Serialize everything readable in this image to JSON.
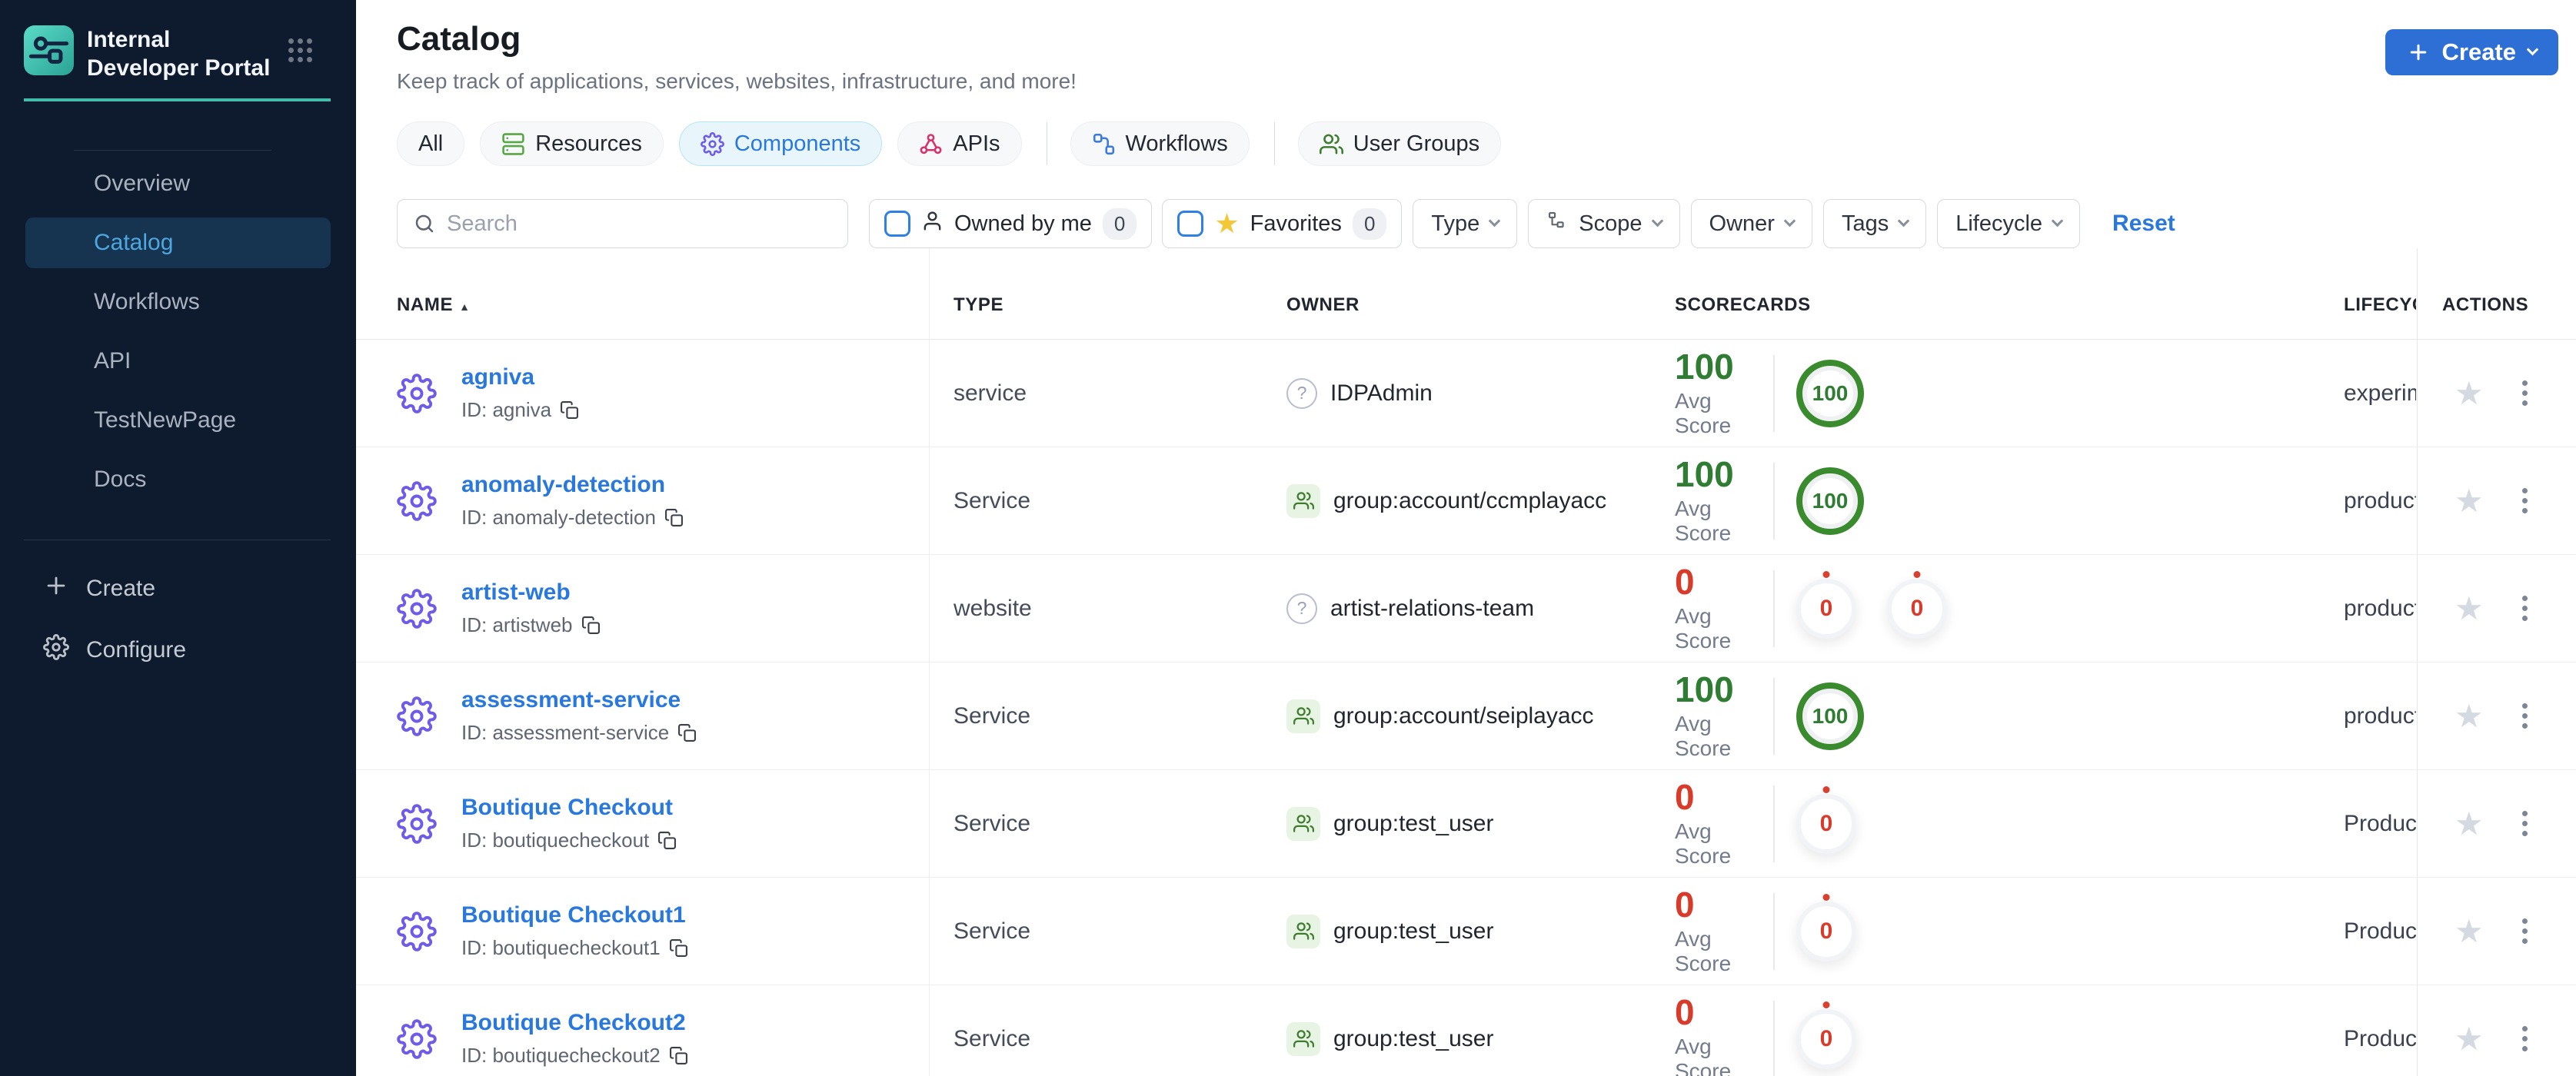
{
  "colors": {
    "sidebar-bg": "#0e1a2d",
    "teal": "#43bcab",
    "accent-blue": "#2e6fd6",
    "link-blue": "#2878dd",
    "gear-purple": "#6e5be8",
    "pink": "#d6336c",
    "green-pass": "#2e7d32",
    "red-fail": "#d93b2b"
  },
  "brand": {
    "title": "Internal Developer Portal"
  },
  "sidebar": {
    "items": [
      {
        "label": "Overview",
        "active": false
      },
      {
        "label": "Catalog",
        "active": true
      },
      {
        "label": "Workflows",
        "active": false
      },
      {
        "label": "API",
        "active": false
      },
      {
        "label": "TestNewPage",
        "active": false
      },
      {
        "label": "Docs",
        "active": false
      }
    ],
    "create_label": "Create",
    "configure_label": "Configure"
  },
  "header": {
    "title": "Catalog",
    "subtitle": "Keep track of applications, services, websites, infrastructure, and more!",
    "create_button": "Create"
  },
  "tabs": [
    {
      "label": "All",
      "selected": false
    },
    {
      "label": "Resources",
      "selected": false
    },
    {
      "label": "Components",
      "selected": true
    },
    {
      "label": "APIs",
      "selected": false
    },
    {
      "label": "Workflows",
      "selected": false
    },
    {
      "label": "User Groups",
      "selected": false
    }
  ],
  "filters": {
    "search_placeholder": "Search",
    "owned_by_me_label": "Owned by me",
    "owned_by_me_count": "0",
    "favorites_label": "Favorites",
    "favorites_count": "0",
    "dropdowns": [
      {
        "label": "Type"
      },
      {
        "label": "Scope"
      },
      {
        "label": "Owner"
      },
      {
        "label": "Tags"
      },
      {
        "label": "Lifecycle"
      }
    ],
    "reset_label": "Reset"
  },
  "table": {
    "columns": {
      "name": "NAME",
      "type": "TYPE",
      "owner": "OWNER",
      "scorecards": "SCORECARDS",
      "lifecycle": "LIFECYCLE",
      "actions": "ACTIONS"
    },
    "avg_score_label": "Avg Score",
    "rows": [
      {
        "name": "agniva",
        "id_label": "ID: agniva",
        "type": "service",
        "owner": "IDPAdmin",
        "owner_kind": "user",
        "avg_value": "100",
        "avg_status": "pass",
        "badges": [
          {
            "value": "100",
            "status": "pass"
          }
        ],
        "lifecycle": "experimental"
      },
      {
        "name": "anomaly-detection",
        "id_label": "ID: anomaly-detection",
        "type": "Service",
        "owner": "group:account/ccmplayacc",
        "owner_kind": "group",
        "avg_value": "100",
        "avg_status": "pass",
        "badges": [
          {
            "value": "100",
            "status": "pass"
          }
        ],
        "lifecycle": "production"
      },
      {
        "name": "artist-web",
        "id_label": "ID: artistweb",
        "type": "website",
        "owner": "artist-relations-team",
        "owner_kind": "user",
        "avg_value": "0",
        "avg_status": "fail",
        "badges": [
          {
            "value": "0",
            "status": "fail"
          },
          {
            "value": "0",
            "status": "fail"
          }
        ],
        "lifecycle": "production"
      },
      {
        "name": "assessment-service",
        "id_label": "ID: assessment-service",
        "type": "Service",
        "owner": "group:account/seiplayacc",
        "owner_kind": "group",
        "avg_value": "100",
        "avg_status": "pass",
        "badges": [
          {
            "value": "100",
            "status": "pass"
          }
        ],
        "lifecycle": "production"
      },
      {
        "name": "Boutique Checkout",
        "id_label": "ID: boutiquecheckout",
        "type": "Service",
        "owner": "group:test_user",
        "owner_kind": "group",
        "avg_value": "0",
        "avg_status": "fail",
        "badges": [
          {
            "value": "0",
            "status": "fail"
          }
        ],
        "lifecycle": "Production"
      },
      {
        "name": "Boutique Checkout1",
        "id_label": "ID: boutiquecheckout1",
        "type": "Service",
        "owner": "group:test_user",
        "owner_kind": "group",
        "avg_value": "0",
        "avg_status": "fail",
        "badges": [
          {
            "value": "0",
            "status": "fail"
          }
        ],
        "lifecycle": "Production"
      },
      {
        "name": "Boutique Checkout2",
        "id_label": "ID: boutiquecheckout2",
        "type": "Service",
        "owner": "group:test_user",
        "owner_kind": "group",
        "avg_value": "0",
        "avg_status": "fail",
        "badges": [
          {
            "value": "0",
            "status": "fail"
          }
        ],
        "lifecycle": "Production"
      }
    ]
  }
}
